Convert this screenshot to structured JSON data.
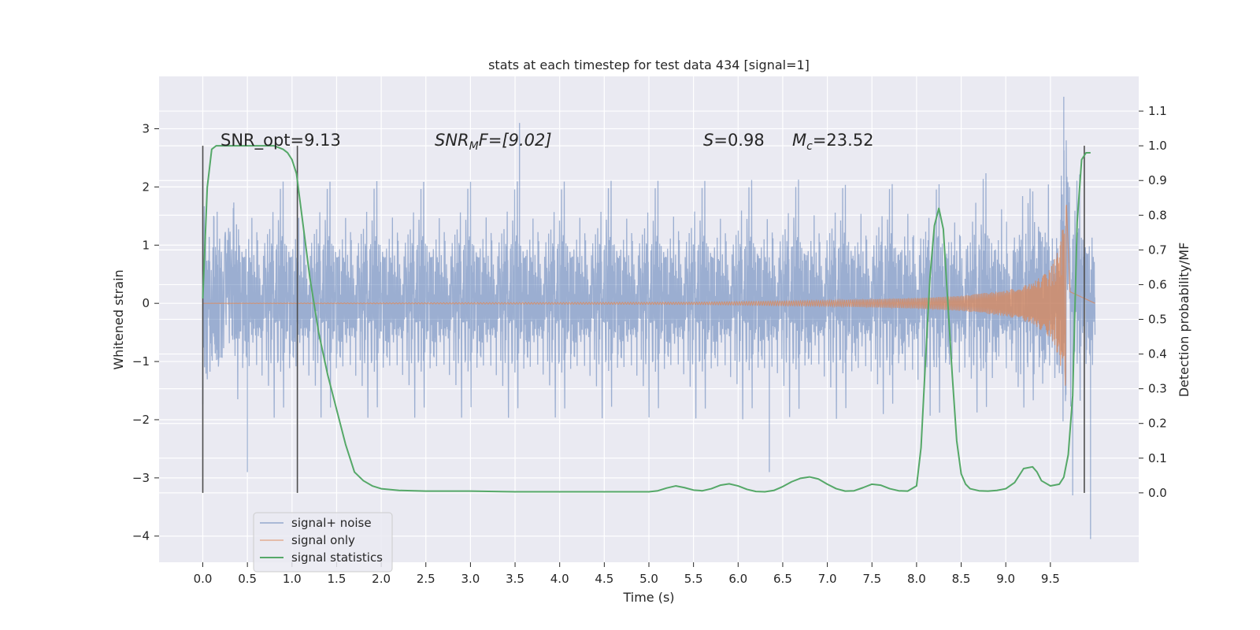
{
  "chart_data": {
    "type": "line",
    "title": "stats at each timestep for test data 434 [signal=1]",
    "xlabel": "Time (s)",
    "ylabel_left": "Whitened strain",
    "ylabel_right": "Detection probability/MF",
    "xlim": [
      -0.49,
      10.49
    ],
    "ylim_left": [
      -4.45,
      3.9
    ],
    "ylim_right": [
      -0.2,
      1.2
    ],
    "x_ticks": [
      "0.0",
      "0.5",
      "1.0",
      "1.5",
      "2.0",
      "2.5",
      "3.0",
      "3.5",
      "4.0",
      "4.5",
      "5.0",
      "5.5",
      "6.0",
      "6.5",
      "7.0",
      "7.5",
      "8.0",
      "8.5",
      "9.0",
      "9.5"
    ],
    "x_tick_values": [
      0,
      0.5,
      1,
      1.5,
      2,
      2.5,
      3,
      3.5,
      4,
      4.5,
      5,
      5.5,
      6,
      6.5,
      7,
      7.5,
      8,
      8.5,
      9,
      9.5
    ],
    "y_left_ticks": [
      "3",
      "2",
      "1",
      "0",
      "−1",
      "−2",
      "−3",
      "−4"
    ],
    "y_left_tick_values": [
      3,
      2,
      1,
      0,
      -1,
      -2,
      -3,
      -4
    ],
    "y_right_ticks": [
      "1.1",
      "1.0",
      "0.9",
      "0.8",
      "0.7",
      "0.6",
      "0.5",
      "0.4",
      "0.3",
      "0.2",
      "0.1",
      "0.0"
    ],
    "y_right_tick_values": [
      1.1,
      1.0,
      0.9,
      0.8,
      0.7,
      0.6,
      0.5,
      0.4,
      0.3,
      0.2,
      0.1,
      0.0
    ],
    "grid": true,
    "legend_position": "lower-left",
    "colors": {
      "background": "#eaeaf2",
      "grid": "#ffffff",
      "noise": "#4c72b0",
      "signal": "#dd8452",
      "stats": "#55a868",
      "vline": "#4d4d4d"
    },
    "annotations": {
      "snr_opt": "SNR_opt=9.13",
      "snr_mf_main": "SNR",
      "snr_mf_sub": "M",
      "snr_mf_rest": "F=[9.02]",
      "s_main": "S",
      "s_rest": "=0.98",
      "mc_main": "M",
      "mc_sub": "c",
      "mc_rest": "=23.52"
    },
    "vertical_lines_x": [
      0.0,
      1.06,
      9.88
    ],
    "series": [
      {
        "name": "signal+ noise",
        "axis": "left",
        "style": "dense-noise",
        "x_range": [
          0.0,
          10.0
        ],
        "envelope_typical": 1.3,
        "extremes": [
          [
            0.5,
            -2.9
          ],
          [
            3.55,
            3.1
          ],
          [
            6.35,
            -2.9
          ],
          [
            9.65,
            3.55
          ],
          [
            9.95,
            -4.05
          ],
          [
            9.75,
            -3.3
          ]
        ]
      },
      {
        "name": "signal only",
        "axis": "left",
        "style": "chirp",
        "x_range": [
          0.0,
          10.0
        ],
        "merger_time": 9.68,
        "amplitude": [
          [
            0.0,
            0.0
          ],
          [
            5.5,
            0.02
          ],
          [
            7.0,
            0.05
          ],
          [
            8.0,
            0.09
          ],
          [
            8.5,
            0.13
          ],
          [
            9.0,
            0.22
          ],
          [
            9.3,
            0.35
          ],
          [
            9.5,
            0.6
          ],
          [
            9.6,
            0.95
          ],
          [
            9.68,
            1.7
          ],
          [
            9.72,
            0.2
          ],
          [
            10.0,
            0.0
          ]
        ]
      },
      {
        "name": "signal statistics",
        "axis": "right",
        "style": "line",
        "x": [
          0.0,
          0.05,
          0.1,
          0.15,
          0.2,
          0.3,
          0.4,
          0.5,
          0.6,
          0.7,
          0.8,
          0.9,
          0.95,
          1.0,
          1.05,
          1.1,
          1.15,
          1.2,
          1.3,
          1.4,
          1.5,
          1.6,
          1.65,
          1.7,
          1.8,
          1.9,
          2.0,
          2.2,
          2.5,
          3.0,
          3.5,
          4.0,
          4.5,
          5.0,
          5.1,
          5.2,
          5.3,
          5.4,
          5.5,
          5.6,
          5.7,
          5.8,
          5.9,
          6.0,
          6.1,
          6.2,
          6.3,
          6.4,
          6.5,
          6.6,
          6.7,
          6.8,
          6.9,
          7.0,
          7.1,
          7.2,
          7.3,
          7.4,
          7.5,
          7.6,
          7.7,
          7.8,
          7.9,
          8.0,
          8.05,
          8.1,
          8.15,
          8.2,
          8.25,
          8.3,
          8.35,
          8.4,
          8.45,
          8.5,
          8.55,
          8.6,
          8.7,
          8.8,
          8.9,
          9.0,
          9.1,
          9.2,
          9.3,
          9.35,
          9.4,
          9.5,
          9.6,
          9.65,
          9.7,
          9.75,
          9.8,
          9.85,
          9.9,
          9.95
        ],
        "y": [
          0.56,
          0.88,
          0.99,
          1.0,
          1.0,
          1.0,
          1.0,
          1.0,
          1.0,
          1.0,
          1.0,
          0.99,
          0.98,
          0.96,
          0.92,
          0.82,
          0.72,
          0.62,
          0.46,
          0.34,
          0.24,
          0.14,
          0.1,
          0.06,
          0.035,
          0.02,
          0.012,
          0.007,
          0.005,
          0.005,
          0.003,
          0.003,
          0.003,
          0.003,
          0.006,
          0.014,
          0.02,
          0.015,
          0.008,
          0.006,
          0.012,
          0.022,
          0.026,
          0.02,
          0.01,
          0.004,
          0.003,
          0.007,
          0.018,
          0.032,
          0.042,
          0.046,
          0.04,
          0.025,
          0.012,
          0.005,
          0.006,
          0.015,
          0.025,
          0.022,
          0.012,
          0.006,
          0.005,
          0.02,
          0.13,
          0.38,
          0.62,
          0.77,
          0.82,
          0.76,
          0.55,
          0.34,
          0.15,
          0.055,
          0.025,
          0.012,
          0.006,
          0.005,
          0.007,
          0.012,
          0.03,
          0.07,
          0.075,
          0.06,
          0.035,
          0.02,
          0.025,
          0.045,
          0.11,
          0.28,
          0.78,
          0.96,
          0.98,
          0.98
        ]
      }
    ]
  }
}
